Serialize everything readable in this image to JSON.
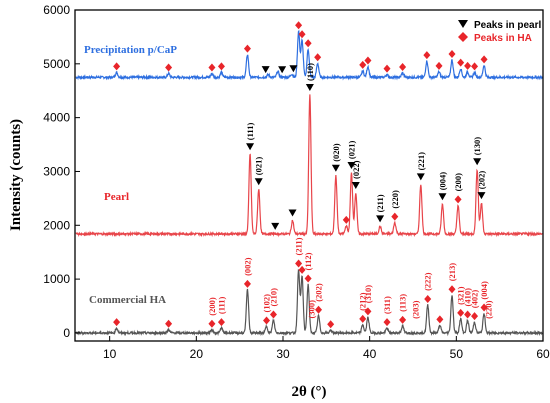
{
  "chart_data": {
    "type": "line",
    "xlabel": "2θ (°)",
    "ylabel": "Intensity (counts)",
    "xlim": [
      6,
      60
    ],
    "ylim": [
      -150,
      6000
    ],
    "x_ticks": [
      10,
      20,
      30,
      40,
      50,
      60
    ],
    "y_ticks": [
      0,
      1000,
      2000,
      3000,
      4000,
      5000,
      6000
    ],
    "legend": {
      "position": "top-right",
      "entries": [
        {
          "name": "Peaks in pearl",
          "marker": "down-triangle",
          "color": "#000000"
        },
        {
          "name": "Peaks in HA",
          "marker": "diamond",
          "color": "#e8252a"
        }
      ]
    },
    "series": [
      {
        "name": "Precipitation p/CaP",
        "color": "#2e6fe0",
        "baseline": 4750,
        "peaks": [
          [
            10.8,
            90
          ],
          [
            16.8,
            70
          ],
          [
            21.8,
            70
          ],
          [
            22.9,
            90
          ],
          [
            25.9,
            420
          ],
          [
            28.3,
            50
          ],
          [
            29.4,
            110
          ],
          [
            31.0,
            60
          ],
          [
            31.8,
            850
          ],
          [
            32.2,
            680
          ],
          [
            32.9,
            520
          ],
          [
            34.0,
            260
          ],
          [
            39.2,
            120
          ],
          [
            39.8,
            200
          ],
          [
            42.0,
            50
          ],
          [
            43.8,
            80
          ],
          [
            46.6,
            300
          ],
          [
            48.0,
            100
          ],
          [
            49.5,
            320
          ],
          [
            50.5,
            160
          ],
          [
            51.3,
            100
          ],
          [
            52.1,
            90
          ],
          [
            53.2,
            220
          ]
        ],
        "markers_ha": [
          10.8,
          16.8,
          21.8,
          22.9,
          25.9,
          31.8,
          32.2,
          32.9,
          34.0,
          39.2,
          39.8,
          42.0,
          43.8,
          46.6,
          48.0,
          49.5,
          50.5,
          51.3,
          52.1,
          53.2
        ],
        "markers_pearl": [
          28.0,
          29.9,
          31.2
        ],
        "series_label": "Precipitation p/CaP"
      },
      {
        "name": "Pearl",
        "color": "#e8454a",
        "baseline": 1840,
        "peaks": [
          [
            26.2,
            1480
          ],
          [
            27.2,
            830
          ],
          [
            31.1,
            250
          ],
          [
            33.1,
            2580
          ],
          [
            36.1,
            1080
          ],
          [
            37.3,
            150
          ],
          [
            37.9,
            1130
          ],
          [
            38.4,
            760
          ],
          [
            41.2,
            140
          ],
          [
            42.9,
            210
          ],
          [
            45.9,
            920
          ],
          [
            48.4,
            550
          ],
          [
            50.2,
            530
          ],
          [
            52.4,
            1200
          ],
          [
            52.9,
            570
          ]
        ],
        "markers_pearl": [
          26.2,
          27.2,
          29.1,
          31.1,
          33.1,
          36.1,
          37.9,
          38.4,
          41.2,
          45.9,
          48.4,
          52.4,
          52.9
        ],
        "markers_ha": [
          37.3,
          42.9,
          50.2
        ],
        "labels": [
          {
            "x": 26.2,
            "text": "(111)"
          },
          {
            "x": 27.2,
            "text": "(021)"
          },
          {
            "x": 33.1,
            "text": "(110)"
          },
          {
            "x": 36.1,
            "text": "(020)"
          },
          {
            "x": 37.9,
            "text": "(021)"
          },
          {
            "x": 38.4,
            "text": "(022)"
          },
          {
            "x": 41.2,
            "text": "(211)"
          },
          {
            "x": 42.9,
            "text": "(220)"
          },
          {
            "x": 45.9,
            "text": "(221)"
          },
          {
            "x": 48.4,
            "text": "(004)"
          },
          {
            "x": 50.2,
            "text": "(200)"
          },
          {
            "x": 52.4,
            "text": "(130)"
          },
          {
            "x": 52.9,
            "text": "(202)"
          }
        ],
        "series_label": "Pearl"
      },
      {
        "name": "Commercial HA",
        "color": "#555555",
        "baseline": 0,
        "peaks": [
          [
            10.8,
            90
          ],
          [
            16.8,
            60
          ],
          [
            21.8,
            60
          ],
          [
            22.9,
            90
          ],
          [
            25.9,
            800
          ],
          [
            28.1,
            120
          ],
          [
            28.9,
            230
          ],
          [
            31.8,
            1170
          ],
          [
            32.2,
            1050
          ],
          [
            32.9,
            900
          ],
          [
            34.1,
            320
          ],
          [
            35.5,
            50
          ],
          [
            39.2,
            150
          ],
          [
            39.8,
            290
          ],
          [
            42.0,
            90
          ],
          [
            43.8,
            130
          ],
          [
            46.7,
            520
          ],
          [
            48.1,
            140
          ],
          [
            49.5,
            700
          ],
          [
            50.5,
            260
          ],
          [
            51.3,
            230
          ],
          [
            52.1,
            200
          ],
          [
            53.2,
            360
          ]
        ],
        "markers_ha": [
          10.8,
          16.8,
          21.8,
          22.9,
          25.9,
          28.1,
          28.9,
          31.8,
          32.2,
          32.9,
          34.1,
          35.5,
          39.2,
          39.8,
          42.0,
          43.8,
          46.7,
          48.1,
          49.5,
          50.5,
          51.3,
          52.1,
          53.2
        ],
        "labels": [
          {
            "x": 21.8,
            "text": "(200)"
          },
          {
            "x": 22.9,
            "text": "(111)"
          },
          {
            "x": 25.9,
            "text": "(002)"
          },
          {
            "x": 28.1,
            "text": "(102)"
          },
          {
            "x": 28.9,
            "text": "(210)"
          },
          {
            "x": 31.8,
            "text": "(211)"
          },
          {
            "x": 32.9,
            "text": "(112)"
          },
          {
            "x": 33.3,
            "text": "(300)"
          },
          {
            "x": 34.1,
            "text": "(202)"
          },
          {
            "x": 39.2,
            "text": "(212)"
          },
          {
            "x": 39.8,
            "text": "(310)"
          },
          {
            "x": 42.0,
            "text": "(311)"
          },
          {
            "x": 43.8,
            "text": "(113)"
          },
          {
            "x": 45.3,
            "text": "(203)"
          },
          {
            "x": 46.7,
            "text": "(222)"
          },
          {
            "x": 49.5,
            "text": "(213)"
          },
          {
            "x": 50.5,
            "text": "(321)"
          },
          {
            "x": 51.3,
            "text": "(410)"
          },
          {
            "x": 52.1,
            "text": "(402)"
          },
          {
            "x": 53.2,
            "text": "(004)"
          },
          {
            "x": 53.7,
            "text": "(220)"
          }
        ],
        "series_label": "Commercial HA"
      }
    ]
  }
}
